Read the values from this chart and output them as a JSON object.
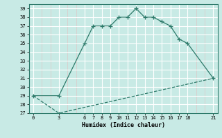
{
  "xlabel": "Humidex (Indice chaleur)",
  "bg_color": "#c8eae5",
  "grid_major_color": "#ffffff",
  "grid_minor_color": "#ddc8c8",
  "line_color": "#2d7a6a",
  "x_ticks": [
    0,
    3,
    6,
    7,
    8,
    9,
    10,
    11,
    12,
    13,
    14,
    15,
    16,
    17,
    18,
    21
  ],
  "ylim": [
    27,
    39.5
  ],
  "yticks": [
    27,
    28,
    29,
    30,
    31,
    32,
    33,
    34,
    35,
    36,
    37,
    38,
    39
  ],
  "xlim": [
    -0.5,
    21.5
  ],
  "curve1_x": [
    0,
    3,
    6,
    7,
    8,
    9,
    10,
    11,
    12,
    13,
    14,
    15,
    16,
    17,
    18,
    21
  ],
  "curve1_y": [
    29,
    29,
    35,
    37,
    37,
    37,
    38,
    38,
    39,
    38,
    38,
    37.5,
    37,
    35.5,
    35,
    31
  ],
  "curve2_x": [
    0,
    3,
    21
  ],
  "curve2_y": [
    29,
    27,
    31
  ]
}
